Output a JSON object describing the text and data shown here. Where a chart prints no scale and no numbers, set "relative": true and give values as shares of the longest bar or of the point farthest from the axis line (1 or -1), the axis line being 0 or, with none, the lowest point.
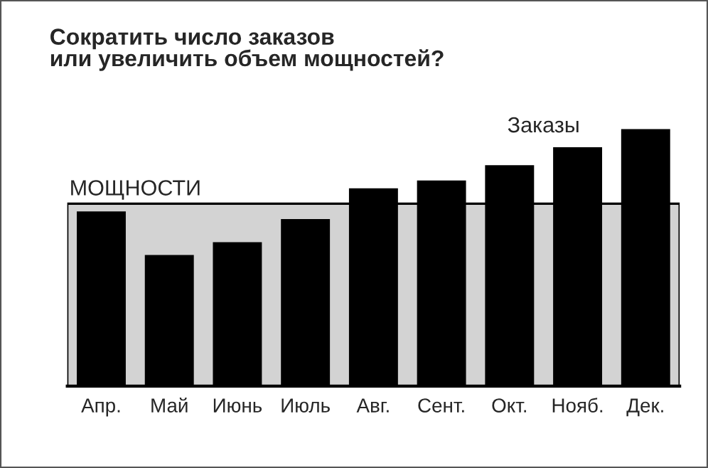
{
  "chart_data": {
    "type": "bar",
    "title": "Сократить число заказов\nили увеличить объем мощностей?",
    "relative": true,
    "categories": [
      "Апр.",
      "Май",
      "Июнь",
      "Июль",
      "Авг.",
      "Сент.",
      "Окт.",
      "Нояб.",
      "Дек."
    ],
    "series": [
      {
        "name": "Заказы",
        "color": "#000000",
        "values": [
          0.68,
          0.51,
          0.56,
          0.65,
          0.77,
          0.8,
          0.86,
          0.93,
          1.0
        ]
      }
    ],
    "bands": [
      {
        "axis": "y",
        "from": 0,
        "to": 0.71,
        "label": "МОЩНОСТИ",
        "color": "#d3d3d3"
      }
    ],
    "grid": false,
    "legend": false
  }
}
